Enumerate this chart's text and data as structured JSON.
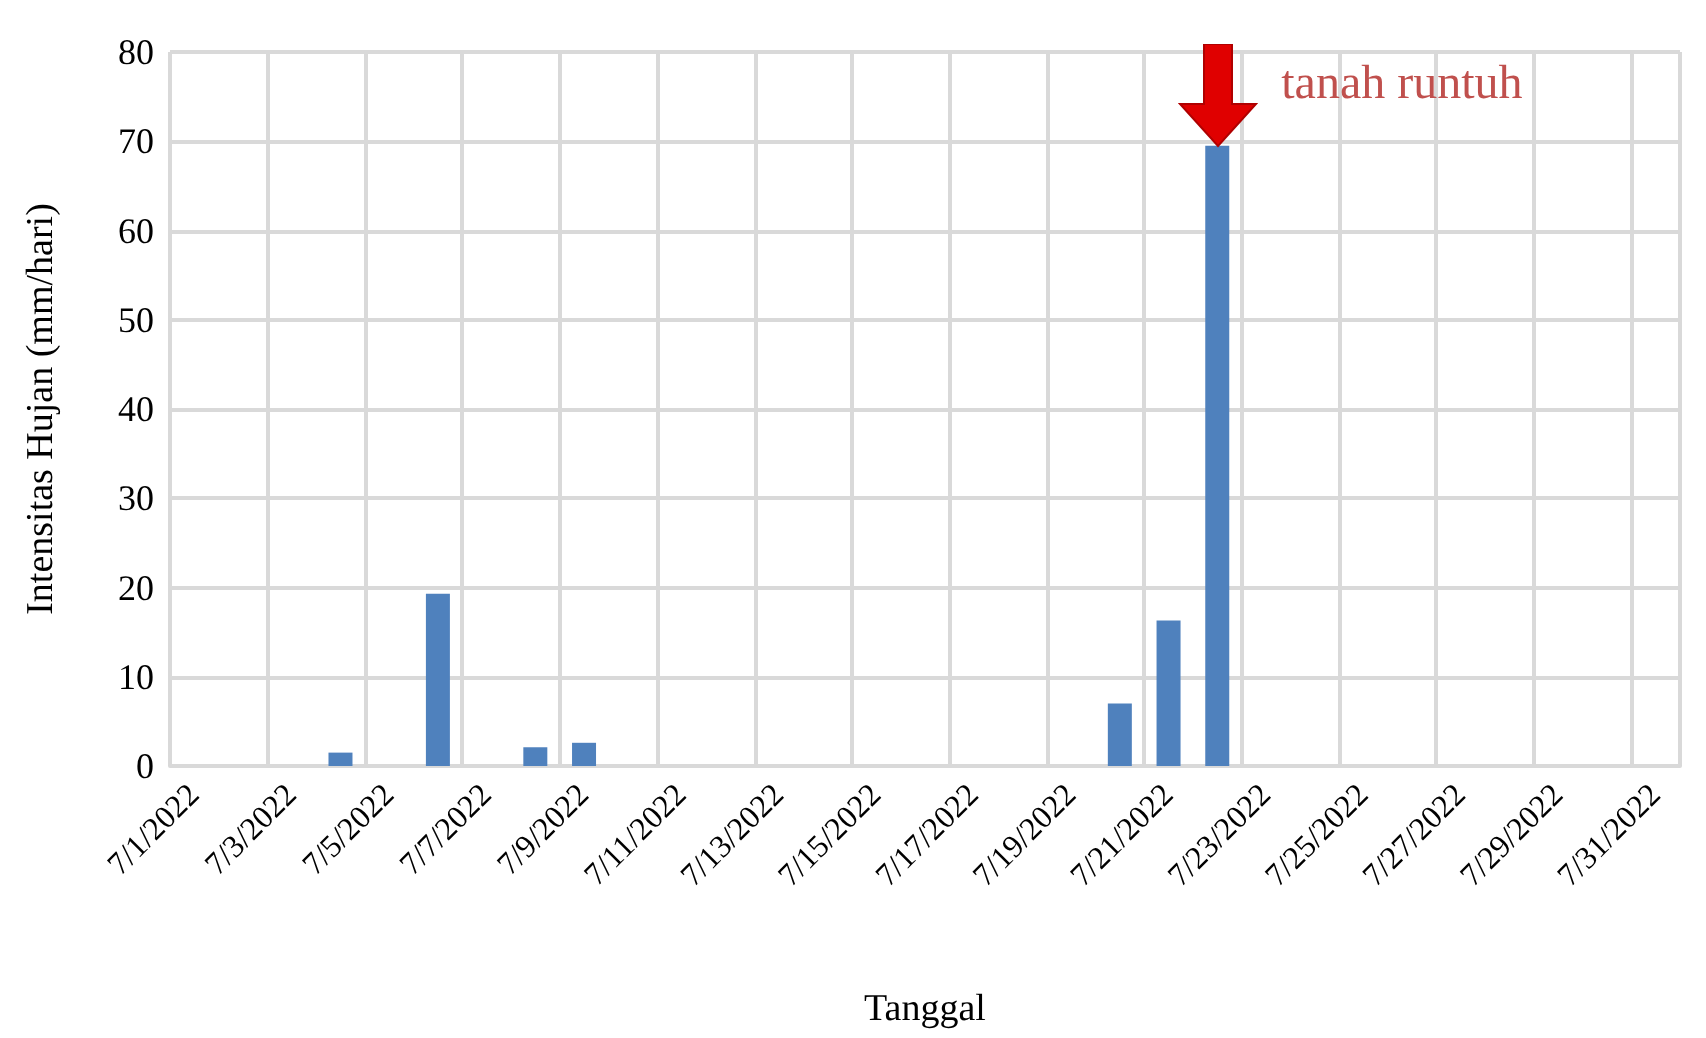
{
  "chart_data": {
    "type": "bar",
    "xlabel": "Tanggal",
    "ylabel": "Intensitas Hujan (mm/hari)",
    "categories": [
      "7/1/2022",
      null,
      "7/3/2022",
      null,
      "7/5/2022",
      null,
      "7/7/2022",
      null,
      "7/9/2022",
      null,
      "7/11/2022",
      null,
      "7/13/2022",
      null,
      "7/15/2022",
      null,
      "7/17/2022",
      null,
      "7/19/2022",
      null,
      "7/21/2022",
      null,
      "7/23/2022",
      null,
      "7/25/2022",
      null,
      "7/27/2022",
      null,
      "7/29/2022",
      null,
      "7/31/2022"
    ],
    "values": [
      0,
      0,
      0,
      1.5,
      0,
      19.3,
      0,
      2.1,
      2.6,
      0,
      0,
      0,
      0,
      0,
      0,
      0,
      0,
      0,
      0,
      7,
      16.3,
      69.5,
      0,
      0,
      0,
      0,
      0,
      0,
      0,
      0,
      0
    ],
    "color": "#4f81bd",
    "ylim": [
      0,
      80
    ],
    "yticks": [
      0,
      10,
      20,
      30,
      40,
      50,
      60,
      70,
      80
    ],
    "grid": true,
    "annotations": [
      "tanah runtuh"
    ]
  }
}
